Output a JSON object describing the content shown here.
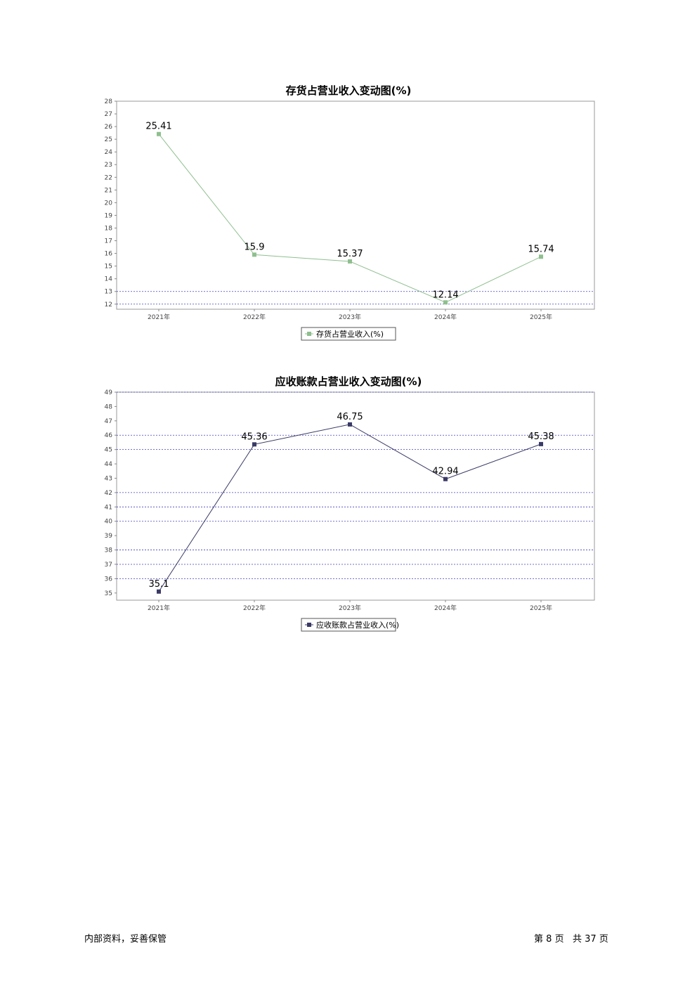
{
  "chart_data": [
    {
      "type": "line",
      "title": "存货占营业收入变动图(%)",
      "categories": [
        "2021年",
        "2022年",
        "2023年",
        "2024年",
        "2025年"
      ],
      "series": [
        {
          "name": "存货占营业收入(%)",
          "values": [
            25.41,
            15.9,
            15.37,
            12.14,
            15.74
          ],
          "color": "#8fbf8f"
        }
      ],
      "ylim": [
        11.6,
        28.0
      ],
      "yticks": [
        "28",
        "27",
        "26",
        "25",
        "24",
        "23",
        "22",
        "21",
        "20",
        "19",
        "18",
        "17",
        "16",
        "15",
        "14",
        "13",
        "12"
      ],
      "reference_lines": [
        13,
        12
      ],
      "reference_color": "#4040c0",
      "legend": "bottom-center",
      "xlabel": "",
      "ylabel": ""
    },
    {
      "type": "line",
      "title": "应收账款占营业收入变动图(%)",
      "categories": [
        "2021年",
        "2022年",
        "2023年",
        "2024年",
        "2025年"
      ],
      "series": [
        {
          "name": "应收账款占营业收入(%)",
          "values": [
            35.1,
            45.36,
            46.75,
            42.94,
            45.38
          ],
          "color": "#3a3a66"
        }
      ],
      "ylim": [
        34.5,
        49.0
      ],
      "yticks": [
        "49",
        "48",
        "47",
        "46",
        "45",
        "44",
        "43",
        "42",
        "41",
        "40",
        "39",
        "38",
        "37",
        "36",
        "35"
      ],
      "reference_lines": [
        49,
        46,
        45,
        42,
        41,
        40,
        38,
        37,
        36
      ],
      "reference_color": "#4040c0",
      "legend": "bottom-center",
      "xlabel": "",
      "ylabel": ""
    }
  ],
  "footer": {
    "left": "内部资料，妥善保管",
    "page_prefix": "第",
    "page_number": "8",
    "page_suffix": "页",
    "total_prefix": "共",
    "total_pages": "37",
    "total_suffix": "页"
  }
}
